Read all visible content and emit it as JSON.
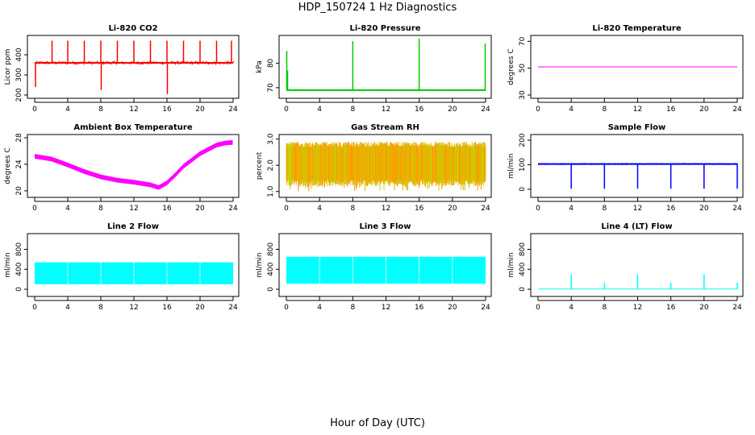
{
  "title": "HDP_150724  1 Hz Diagnostics",
  "xlabel": "Hour of Day (UTC)",
  "chart_data": [
    {
      "type": "line",
      "title": "Li-820 CO2",
      "ylabel": "Licor ppm",
      "color": "#ff0000",
      "xlim": [
        0,
        24
      ],
      "ylim": [
        200,
        480
      ],
      "yticks": [
        200,
        300,
        400
      ],
      "xticks": [
        0,
        4,
        8,
        12,
        16,
        20,
        24
      ],
      "baseline": 360,
      "band": 10,
      "spikes": [
        {
          "x": 0.1,
          "y": 240
        },
        {
          "x": 2.1,
          "y": 470
        },
        {
          "x": 4.0,
          "y": 470
        },
        {
          "x": 6.0,
          "y": 470
        },
        {
          "x": 8.0,
          "y": 470
        },
        {
          "x": 8.05,
          "y": 225
        },
        {
          "x": 10.0,
          "y": 470
        },
        {
          "x": 12.0,
          "y": 470
        },
        {
          "x": 14.0,
          "y": 470
        },
        {
          "x": 16.0,
          "y": 470
        },
        {
          "x": 16.05,
          "y": 205
        },
        {
          "x": 18.0,
          "y": 470
        },
        {
          "x": 20.0,
          "y": 470
        },
        {
          "x": 22.0,
          "y": 470
        },
        {
          "x": 23.8,
          "y": 470
        }
      ]
    },
    {
      "type": "line",
      "title": "Li-820 Pressure",
      "ylabel": "kPa",
      "color": "#00cc00",
      "xlim": [
        0,
        24
      ],
      "ylim": [
        67,
        90
      ],
      "yticks": [
        70,
        80
      ],
      "xticks": [
        0,
        4,
        8,
        12,
        16,
        20,
        24
      ],
      "baseline": 69,
      "band": 0.3,
      "spikes": [
        {
          "x": 0.05,
          "y": 85
        },
        {
          "x": 0.15,
          "y": 77
        },
        {
          "x": 8.0,
          "y": 89
        },
        {
          "x": 16.0,
          "y": 90
        },
        {
          "x": 23.95,
          "y": 88
        }
      ]
    },
    {
      "type": "line",
      "title": "Li-820 Temperature",
      "ylabel": "degrees C",
      "color": "#ff00ff",
      "xlim": [
        0,
        24
      ],
      "ylim": [
        30,
        72
      ],
      "yticks": [
        30,
        50,
        70
      ],
      "xticks": [
        0,
        4,
        8,
        12,
        16,
        20,
        24
      ],
      "baseline": 51,
      "band": 0,
      "spikes": []
    },
    {
      "type": "line",
      "title": "Ambient Box Temperature",
      "ylabel": "degrees C",
      "color": "#ff00ff",
      "xlim": [
        0,
        24
      ],
      "ylim": [
        19.5,
        28
      ],
      "yticks": [
        20,
        24,
        28
      ],
      "xticks": [
        0,
        4,
        8,
        12,
        16,
        20,
        24
      ],
      "x": [
        0,
        2,
        4,
        6,
        8,
        10,
        12,
        14,
        15,
        16,
        17,
        18,
        20,
        22,
        23,
        24
      ],
      "y": [
        25.2,
        24.8,
        23.9,
        22.9,
        22.1,
        21.6,
        21.3,
        20.9,
        20.5,
        21.2,
        22.4,
        23.7,
        25.6,
        26.9,
        27.2,
        27.3
      ],
      "band": 0.35
    },
    {
      "type": "line",
      "title": "Gas Stream RH",
      "ylabel": "percent",
      "color": "#ff9900",
      "color2": "#cccc00",
      "xlim": [
        0,
        24
      ],
      "ylim": [
        0.9,
        3.05
      ],
      "yticks": [
        1.0,
        2.0,
        3.0
      ],
      "xticks": [
        0,
        4,
        8,
        12,
        16,
        20,
        24
      ],
      "upper": 2.8,
      "lower": 1.2,
      "dips": 1.0
    },
    {
      "type": "line",
      "title": "Sample Flow",
      "ylabel": "ml/min",
      "color": "#0000ff",
      "xlim": [
        0,
        24
      ],
      "ylim": [
        -20,
        210
      ],
      "yticks": [
        0,
        100,
        200
      ],
      "xticks": [
        0,
        4,
        8,
        12,
        16,
        20,
        24
      ],
      "baseline": 103,
      "band": 4,
      "spikes": [
        {
          "x": 4.0,
          "y": 2
        },
        {
          "x": 8.0,
          "y": 2
        },
        {
          "x": 12.0,
          "y": 2
        },
        {
          "x": 16.0,
          "y": 2
        },
        {
          "x": 20.0,
          "y": 2
        },
        {
          "x": 24.0,
          "y": 2
        }
      ]
    },
    {
      "type": "area",
      "title": "Line 2 Flow",
      "ylabel": "ml/min",
      "color": "#00ffff",
      "xlim": [
        0,
        24
      ],
      "ylim": [
        -80,
        1050
      ],
      "yticks": [
        0,
        400,
        800
      ],
      "xticks": [
        0,
        4,
        8,
        12,
        16,
        20,
        24
      ],
      "upper": 540,
      "lower": 100,
      "gaps": [
        4.0,
        8.0,
        12.0,
        16.0,
        20.0
      ]
    },
    {
      "type": "area",
      "title": "Line 3 Flow",
      "ylabel": "ml/min",
      "color": "#00ffff",
      "xlim": [
        0,
        24
      ],
      "ylim": [
        -80,
        1050
      ],
      "yticks": [
        0,
        400,
        800
      ],
      "xticks": [
        0,
        4,
        8,
        12,
        16,
        20,
        24
      ],
      "upper": 650,
      "lower": 110,
      "gaps": [
        4.0,
        8.0,
        12.0,
        16.0,
        20.0
      ]
    },
    {
      "type": "line",
      "title": "Line 4 (LT) Flow",
      "ylabel": "ml/min",
      "color": "#00ffff",
      "xlim": [
        0,
        24
      ],
      "ylim": [
        -80,
        1050
      ],
      "yticks": [
        0,
        400,
        800
      ],
      "xticks": [
        0,
        4,
        8,
        12,
        16,
        20,
        24
      ],
      "baseline": 5,
      "band": 0,
      "spikes": [
        {
          "x": 4.0,
          "y": 300
        },
        {
          "x": 8.0,
          "y": 130
        },
        {
          "x": 12.0,
          "y": 300
        },
        {
          "x": 16.0,
          "y": 130
        },
        {
          "x": 20.0,
          "y": 300
        },
        {
          "x": 24.0,
          "y": 130
        }
      ]
    }
  ]
}
